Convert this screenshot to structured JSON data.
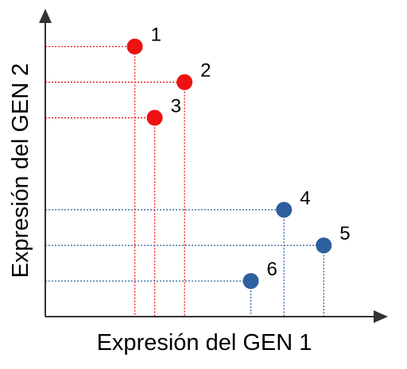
{
  "chart_data": {
    "type": "scatter",
    "title": "",
    "xlabel": "Expresión del GEN 1",
    "ylabel": "Expresión del GEN 2",
    "xlim": [
      0,
      100
    ],
    "ylim": [
      0,
      100
    ],
    "grid": false,
    "ticks": false,
    "guide_lines": "dotted projections to both axes",
    "points": [
      {
        "label": "1",
        "x": 27,
        "y": 91,
        "color": "#ee1111"
      },
      {
        "label": "2",
        "x": 42,
        "y": 79,
        "color": "#ee1111"
      },
      {
        "label": "3",
        "x": 33,
        "y": 67,
        "color": "#ee1111"
      },
      {
        "label": "4",
        "x": 72,
        "y": 36,
        "color": "#2e5f9e"
      },
      {
        "label": "5",
        "x": 84,
        "y": 24,
        "color": "#2e5f9e"
      },
      {
        "label": "6",
        "x": 62,
        "y": 12,
        "color": "#2e5f9e"
      }
    ],
    "colors": {
      "axis": "#333333",
      "group_red": "#ee1111",
      "group_blue": "#2e5f9e"
    }
  }
}
